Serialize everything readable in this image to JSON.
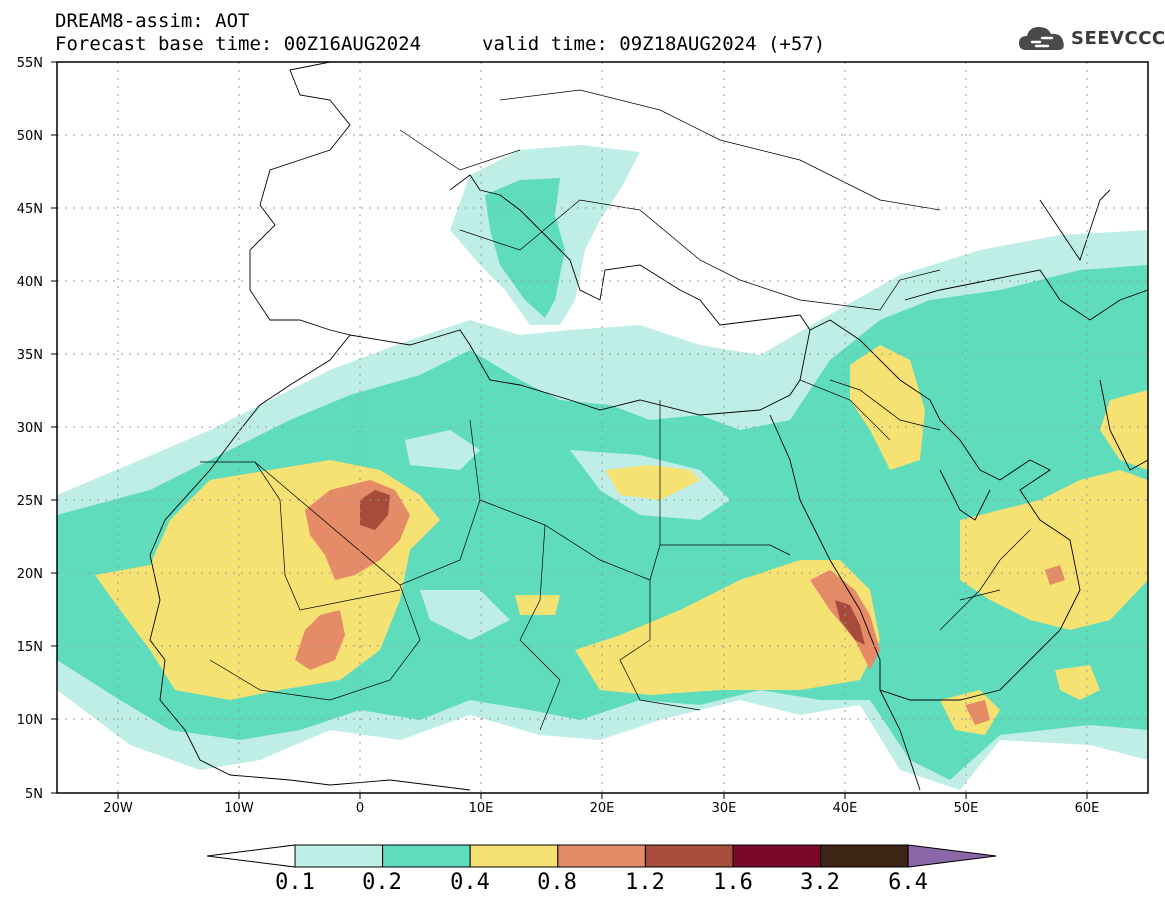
{
  "header": {
    "line1": "DREAM8-assim: AOT",
    "line2": "Forecast base time: 00Z16AUG2024",
    "line3": "valid time: 09Z18AUG2024 (+57)"
  },
  "logo": {
    "text": "SEEVCCC",
    "icon": "cloud-icon"
  },
  "map": {
    "lat_range": [
      "5N",
      "55N"
    ],
    "lon_range": [
      "25W",
      "65E"
    ],
    "lat_labels": [
      "55N",
      "50N",
      "45N",
      "40N",
      "35N",
      "30N",
      "25N",
      "20N",
      "15N",
      "10N",
      "5N"
    ],
    "lon_labels": [
      "20W",
      "10W",
      "0",
      "10E",
      "20E",
      "30E",
      "40E",
      "50E",
      "60E"
    ],
    "grid": "dotted"
  },
  "colorbar": {
    "labels": [
      "0.1",
      "0.2",
      "0.4",
      "0.8",
      "1.2",
      "1.6",
      "3.2",
      "6.4"
    ],
    "colors": [
      "#ffffff",
      "#bfeee6",
      "#5fdcbc",
      "#f5e273",
      "#e58b68",
      "#a74c3c",
      "#7a0828",
      "#3d2515",
      "#8a68a8"
    ]
  }
}
